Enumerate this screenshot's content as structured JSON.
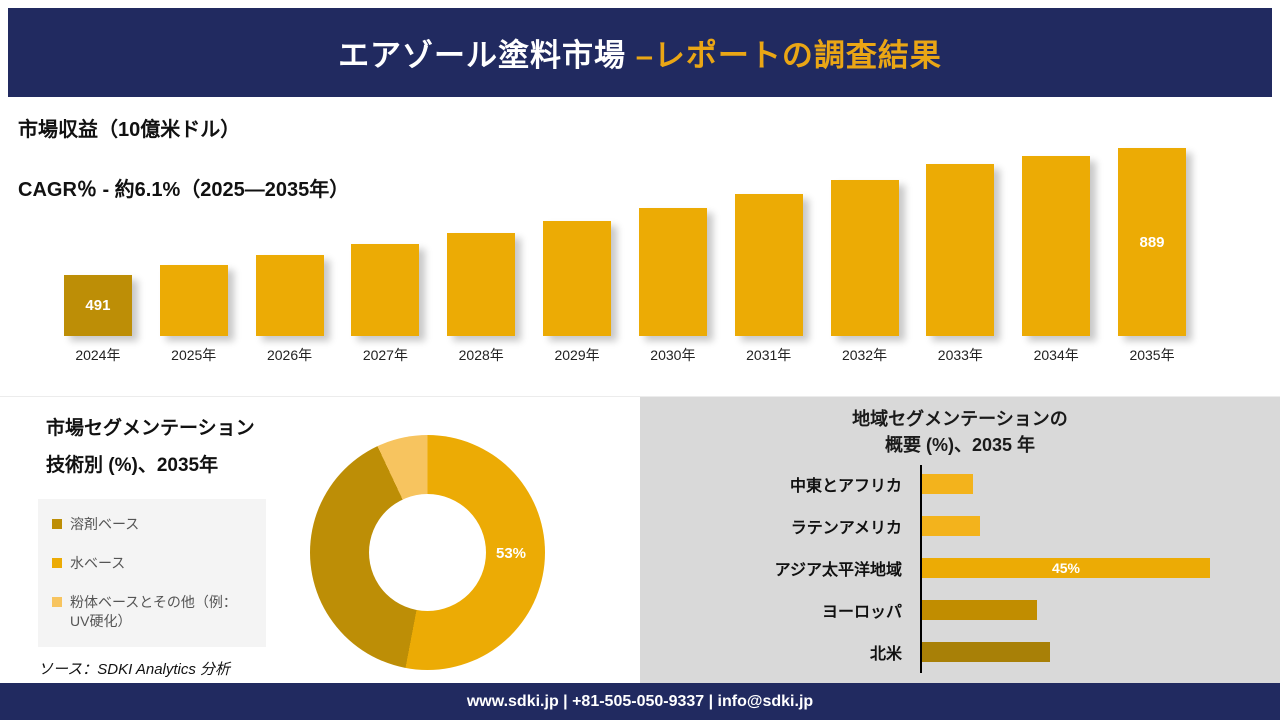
{
  "header": {
    "title_main": "エアゾール塗料市場",
    "title_accent": "–レポートの調査結果"
  },
  "revenue": {
    "metric_label": "市場収益（10億米ドル）",
    "cagr_label": "CAGR％ - 約6.1%（2025―2035年）"
  },
  "segmentation": {
    "title_line1": "市場セグメンテーション",
    "title_line2": "技術別 (%)、2035年",
    "source": "ソース：SDKI Analytics 分析"
  },
  "regional": {
    "title_line1": "地域セグメンテーションの",
    "title_line2": "概要 (%)、2035 年"
  },
  "footer": {
    "contact": "www.sdki.jp | +81-505-050-9337 | info@sdki.jp"
  },
  "colors": {
    "navy": "#212a60",
    "header-accent": "#eaa615",
    "gold": "#ecab05",
    "gold-dark": "#bd8e06",
    "gold-light": "#f7c45f",
    "panel-gray": "#d9d9d9"
  },
  "chart_data": [
    {
      "id": "revenue-by-year",
      "type": "bar",
      "title": "市場収益（10億米ドル）",
      "subtitle": "CAGR％ - 約6.1%（2025―2035年）",
      "unit": "10億米ドル",
      "categories": [
        "2024年",
        "2025年",
        "2026年",
        "2027年",
        "2028年",
        "2029年",
        "2030年",
        "2031年",
        "2032年",
        "2033年",
        "2034年",
        "2035年"
      ],
      "values": [
        491,
        521,
        553,
        587,
        622,
        660,
        700,
        743,
        788,
        836,
        862,
        889
      ],
      "data_labels": {
        "2024年": "491",
        "2035年": "889"
      }
    },
    {
      "id": "technology-segmentation",
      "type": "pie",
      "title": "市場セグメンテーション 技術別 (%)、2035年",
      "labeled_value": "53%",
      "segments": [
        {
          "label": "溶剤ベース",
          "value": 40,
          "color": "#bd8e06",
          "draw_index": 1
        },
        {
          "label": "水ベース",
          "value": 53,
          "color": "#ecab05",
          "draw_index": 0
        },
        {
          "label": "粉体ベースとその他（例：UV硬化）",
          "value": 7,
          "color": "#f7c45f",
          "draw_index": 2
        }
      ]
    },
    {
      "id": "regional-segmentation",
      "type": "bar",
      "orientation": "horizontal",
      "title": "地域セグメンテーションの概要 (%)、2035 年",
      "categories": [
        "中東とアフリカ",
        "ラテンアメリカ",
        "アジア太平洋地域",
        "ヨーロッパ",
        "北米"
      ],
      "values": [
        8,
        9,
        45,
        18,
        20
      ],
      "colors": [
        "#f3b31c",
        "#f3b31c",
        "#ecab05",
        "#c18d00",
        "#a88007"
      ],
      "data_labels": {
        "アジア太平洋地域": "45%"
      }
    }
  ]
}
